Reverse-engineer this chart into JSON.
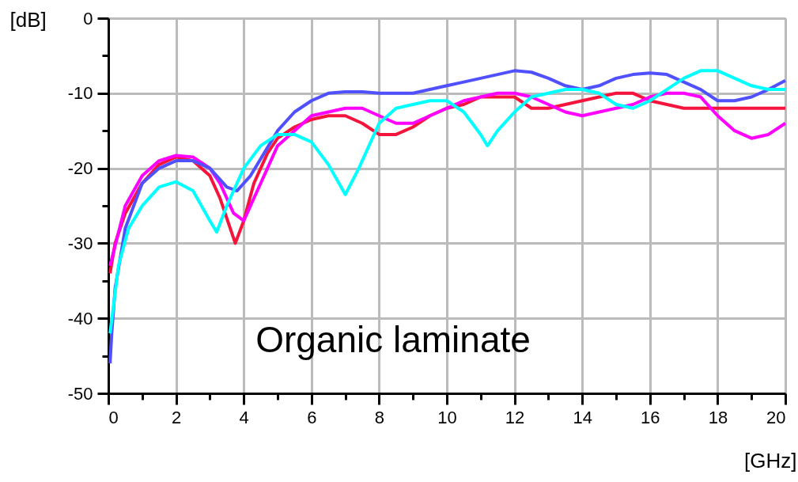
{
  "chart_data": {
    "type": "line",
    "xlabel": "[GHz]",
    "ylabel": "[dB]",
    "xlim": [
      0,
      20
    ],
    "ylim": [
      -50,
      0
    ],
    "xticks": [
      0,
      {
        "value": 1,
        "label": null
      },
      2,
      {
        "value": 3,
        "label": null
      },
      4,
      {
        "value": 5,
        "label": null
      },
      6,
      {
        "value": 7,
        "label": null
      },
      8,
      {
        "value": 9,
        "label": null
      },
      10,
      {
        "value": 11,
        "label": null
      },
      12,
      {
        "value": 13,
        "label": null
      },
      14,
      {
        "value": 15,
        "label": null
      },
      16,
      {
        "value": 17,
        "label": null
      },
      18,
      {
        "value": 19,
        "label": null
      },
      20
    ],
    "yticks": [
      -50,
      {
        "value": -45,
        "label": null
      },
      -40,
      {
        "value": -35,
        "label": null
      },
      -30,
      {
        "value": -25,
        "label": null
      },
      -20,
      {
        "value": -15,
        "label": null
      },
      -10,
      {
        "value": -5,
        "label": null
      },
      0
    ],
    "grid": true,
    "line_style": "solid",
    "marker": "none",
    "annotations": [
      "Organic laminate"
    ],
    "series": [
      {
        "color": "#f5143c",
        "x": [
          0.05,
          0.2,
          0.5,
          1,
          1.5,
          2,
          2.5,
          3,
          3.3,
          3.6,
          3.75,
          4,
          4.3,
          4.7,
          5,
          5.5,
          6,
          6.5,
          7,
          7.5,
          8,
          8.5,
          9,
          9.5,
          10,
          10.5,
          11,
          11.5,
          12,
          12.5,
          13,
          13.5,
          14,
          14.5,
          15,
          15.5,
          16,
          16.5,
          17,
          18,
          19,
          20
        ],
        "values": [
          -34,
          -30,
          -26,
          -22,
          -19.5,
          -18.5,
          -19,
          -21,
          -24,
          -28,
          -30,
          -27,
          -22,
          -18,
          -16,
          -14.5,
          -13.5,
          -13,
          -13,
          -14,
          -15.5,
          -15.5,
          -14.5,
          -13,
          -12,
          -11.5,
          -10.5,
          -10.5,
          -10.5,
          -12,
          -12,
          -11.5,
          -11,
          -10.5,
          -10,
          -10,
          -11,
          -11.5,
          -12,
          -12,
          -12,
          -12
        ]
      },
      {
        "color": "#ff00ff",
        "x": [
          0.05,
          0.5,
          1,
          1.5,
          2,
          2.5,
          3,
          3.3,
          3.7,
          4,
          4.3,
          4.7,
          5,
          5.5,
          6,
          6.5,
          7,
          7.5,
          8,
          8.5,
          9,
          9.5,
          10,
          10.5,
          11,
          11.5,
          12,
          12.5,
          13,
          13.5,
          14,
          14.5,
          15,
          15.5,
          16,
          16.5,
          17,
          17.5,
          18,
          18.5,
          19,
          19.5,
          20
        ],
        "values": [
          -33,
          -25,
          -21,
          -19,
          -18.3,
          -18.5,
          -20,
          -22,
          -26,
          -27,
          -24,
          -20,
          -17,
          -15,
          -13,
          -12.5,
          -12,
          -12,
          -13,
          -14,
          -14,
          -13,
          -12,
          -11,
          -10.5,
          -10,
          -10,
          -10.5,
          -11.5,
          -12.5,
          -13,
          -12.5,
          -12,
          -11.5,
          -10.5,
          -10,
          -10,
          -10.5,
          -13,
          -15,
          -16,
          -15.5,
          -14
        ]
      },
      {
        "color": "#5050ff",
        "x": [
          0.05,
          0.1,
          0.2,
          0.5,
          1,
          1.5,
          2,
          2.5,
          3,
          3.5,
          3.8,
          4.2,
          4.6,
          5,
          5.5,
          6,
          6.5,
          7,
          7.5,
          8,
          8.5,
          9,
          9.5,
          10,
          10.5,
          11,
          11.5,
          12,
          12.5,
          13,
          13.5,
          14,
          14.5,
          15,
          15.5,
          16,
          16.5,
          17,
          17.5,
          18,
          18.5,
          19,
          19.5,
          20
        ],
        "values": [
          -46,
          -42,
          -36,
          -28,
          -22,
          -20,
          -19,
          -19,
          -20,
          -22.5,
          -23,
          -21,
          -18,
          -15,
          -12.5,
          -11,
          -10,
          -9.8,
          -9.8,
          -10,
          -10,
          -10,
          -9.5,
          -9,
          -8.5,
          -8,
          -7.5,
          -7,
          -7.2,
          -8,
          -9,
          -9.5,
          -9,
          -8,
          -7.5,
          -7.3,
          -7.5,
          -8.5,
          -9.5,
          -11,
          -11,
          -10.5,
          -9.5,
          -8.3
        ]
      },
      {
        "color": "#00ffff",
        "x": [
          0.05,
          0.3,
          0.6,
          1,
          1.5,
          2,
          2.5,
          3,
          3.2,
          3.5,
          4,
          4.5,
          5,
          5.5,
          6,
          6.5,
          7,
          7.4,
          8,
          8.5,
          9,
          9.5,
          10,
          10.5,
          11,
          11.2,
          11.5,
          12,
          12.5,
          13,
          13.5,
          14,
          14.5,
          15,
          15.5,
          16,
          16.5,
          17,
          17.5,
          18,
          18.5,
          19,
          19.5,
          20
        ],
        "values": [
          -42,
          -33,
          -28,
          -25,
          -22.5,
          -21.8,
          -23,
          -27,
          -28.5,
          -25,
          -20,
          -17,
          -15.5,
          -15.5,
          -16.5,
          -19.5,
          -23.5,
          -20,
          -14,
          -12,
          -11.5,
          -11,
          -11,
          -12.5,
          -15.5,
          -17,
          -15,
          -12.5,
          -10.5,
          -10,
          -9.5,
          -9.5,
          -10,
          -11.5,
          -12,
          -11,
          -9.5,
          -8,
          -7,
          -7,
          -8,
          -9,
          -9.5,
          -9.5
        ]
      }
    ]
  }
}
